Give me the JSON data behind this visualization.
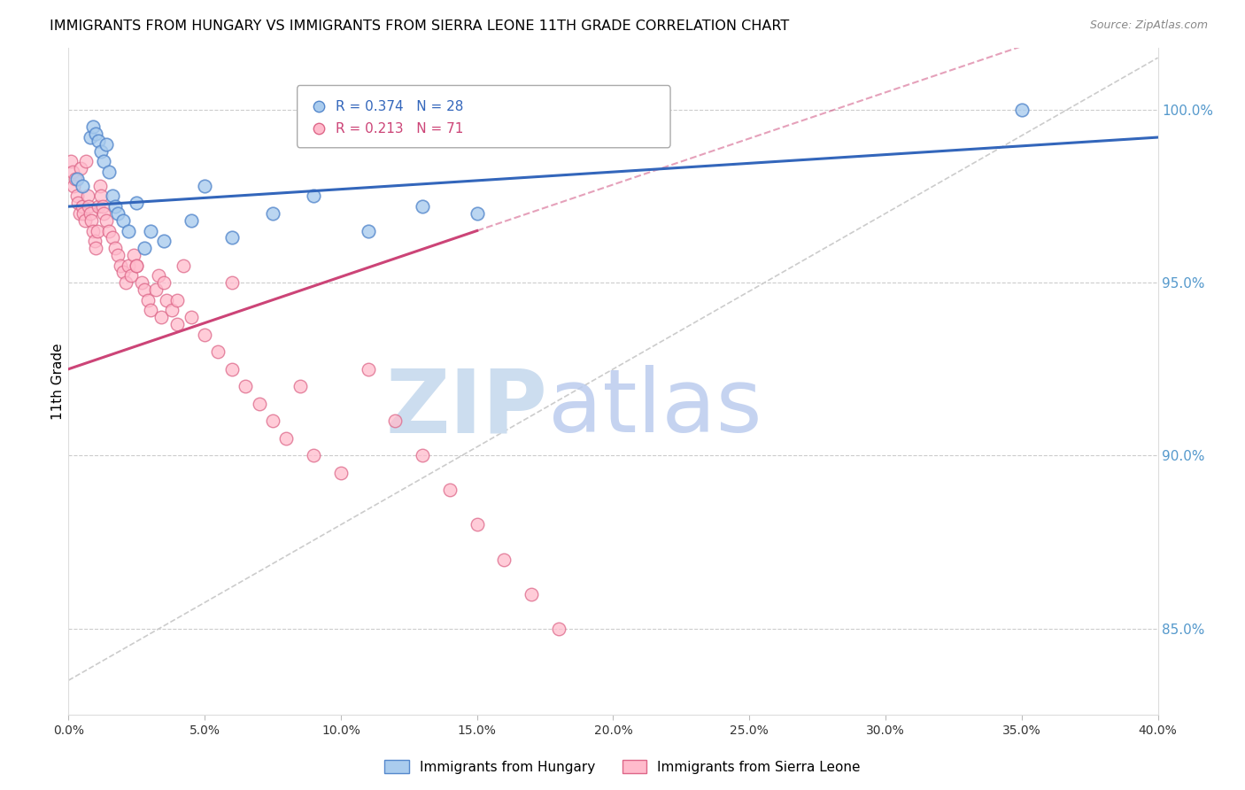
{
  "title": "IMMIGRANTS FROM HUNGARY VS IMMIGRANTS FROM SIERRA LEONE 11TH GRADE CORRELATION CHART",
  "source": "Source: ZipAtlas.com",
  "ylabel": "11th Grade",
  "r_hungary": 0.374,
  "n_hungary": 28,
  "r_sierra": 0.213,
  "n_sierra": 71,
  "x_min": 0.0,
  "x_max": 40.0,
  "y_min": 82.5,
  "y_max": 101.8,
  "yticks": [
    85.0,
    90.0,
    95.0,
    100.0
  ],
  "xticks": [
    0.0,
    5.0,
    10.0,
    15.0,
    20.0,
    25.0,
    30.0,
    35.0,
    40.0
  ],
  "hungary_color": "#aaccee",
  "sierra_color": "#ffbbcc",
  "hungary_edge_color": "#5588cc",
  "sierra_edge_color": "#dd6688",
  "hungary_trend_color": "#3366bb",
  "sierra_trend_color": "#cc4477",
  "ref_line_color": "#cccccc",
  "watermark_zip_color": "#ccddef",
  "watermark_atlas_color": "#bbccee",
  "grid_color": "#cccccc",
  "right_axis_color": "#5599cc",
  "hungary_x": [
    0.3,
    0.5,
    0.8,
    0.9,
    1.0,
    1.1,
    1.2,
    1.3,
    1.4,
    1.5,
    1.6,
    1.7,
    1.8,
    2.0,
    2.2,
    2.5,
    2.8,
    3.0,
    3.5,
    4.5,
    5.0,
    6.0,
    7.5,
    9.0,
    11.0,
    13.0,
    15.0,
    35.0
  ],
  "hungary_y": [
    98.0,
    97.8,
    99.2,
    99.5,
    99.3,
    99.1,
    98.8,
    98.5,
    99.0,
    98.2,
    97.5,
    97.2,
    97.0,
    96.8,
    96.5,
    97.3,
    96.0,
    96.5,
    96.2,
    96.8,
    97.8,
    96.3,
    97.0,
    97.5,
    96.5,
    97.2,
    97.0,
    100.0
  ],
  "sierra_x": [
    0.1,
    0.15,
    0.2,
    0.25,
    0.3,
    0.35,
    0.4,
    0.45,
    0.5,
    0.55,
    0.6,
    0.65,
    0.7,
    0.75,
    0.8,
    0.85,
    0.9,
    0.95,
    1.0,
    1.05,
    1.1,
    1.15,
    1.2,
    1.25,
    1.3,
    1.4,
    1.5,
    1.6,
    1.7,
    1.8,
    1.9,
    2.0,
    2.1,
    2.2,
    2.3,
    2.4,
    2.5,
    2.7,
    2.8,
    2.9,
    3.0,
    3.2,
    3.3,
    3.4,
    3.5,
    3.6,
    3.8,
    4.0,
    4.2,
    4.5,
    5.0,
    5.5,
    6.0,
    6.5,
    7.0,
    7.5,
    8.0,
    9.0,
    10.0,
    11.0,
    12.0,
    13.0,
    14.0,
    15.0,
    16.0,
    17.0,
    18.0,
    2.5,
    4.0,
    6.0,
    8.5
  ],
  "sierra_y": [
    98.5,
    98.2,
    97.8,
    98.0,
    97.5,
    97.3,
    97.0,
    98.3,
    97.2,
    97.0,
    96.8,
    98.5,
    97.5,
    97.2,
    97.0,
    96.8,
    96.5,
    96.2,
    96.0,
    96.5,
    97.2,
    97.8,
    97.5,
    97.2,
    97.0,
    96.8,
    96.5,
    96.3,
    96.0,
    95.8,
    95.5,
    95.3,
    95.0,
    95.5,
    95.2,
    95.8,
    95.5,
    95.0,
    94.8,
    94.5,
    94.2,
    94.8,
    95.2,
    94.0,
    95.0,
    94.5,
    94.2,
    93.8,
    95.5,
    94.0,
    93.5,
    93.0,
    92.5,
    92.0,
    91.5,
    91.0,
    90.5,
    90.0,
    89.5,
    92.5,
    91.0,
    90.0,
    89.0,
    88.0,
    87.0,
    86.0,
    85.0,
    95.5,
    94.5,
    95.0,
    92.0
  ],
  "hungary_trend_x": [
    0.0,
    40.0
  ],
  "hungary_trend_y": [
    97.2,
    99.2
  ],
  "sierra_trend_x": [
    0.0,
    15.0
  ],
  "sierra_trend_y": [
    92.5,
    96.5
  ],
  "ref_line_x": [
    0.0,
    40.0
  ],
  "ref_line_y": [
    83.5,
    101.5
  ]
}
